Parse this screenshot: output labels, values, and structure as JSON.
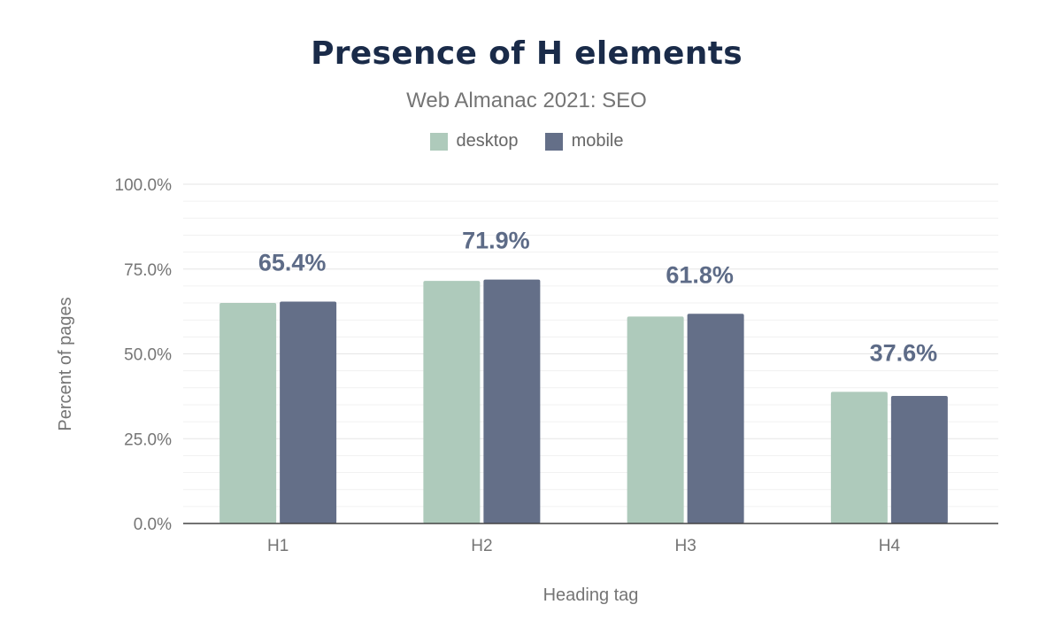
{
  "colors": {
    "desktop": "#aecabb",
    "mobile": "#646f88",
    "title": "#1a2b49",
    "label": "#5d6b87",
    "grid": "#eeeeee",
    "axis": "#444444"
  },
  "chart_data": {
    "type": "bar",
    "title": "Presence of H elements",
    "subtitle": "Web Almanac 2021: SEO",
    "xlabel": "Heading tag",
    "ylabel": "Percent of pages",
    "categories": [
      "H1",
      "H2",
      "H3",
      "H4"
    ],
    "series": [
      {
        "name": "desktop",
        "values": [
          65.0,
          71.5,
          61.0,
          38.8
        ]
      },
      {
        "name": "mobile",
        "values": [
          65.4,
          71.9,
          61.8,
          37.6
        ]
      }
    ],
    "data_labels": [
      "65.4%",
      "71.9%",
      "61.8%",
      "37.6%"
    ],
    "ylim": [
      0,
      100
    ],
    "yticks": [
      "0.0%",
      "25.0%",
      "50.0%",
      "75.0%",
      "100.0%"
    ],
    "grid": true,
    "legend_position": "top-center"
  }
}
